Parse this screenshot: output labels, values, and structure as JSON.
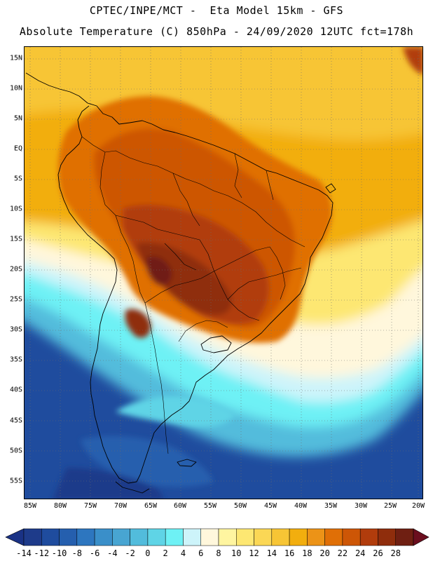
{
  "title_line1": "CPTEC/INPE/MCT -  Eta Model 15km - GFS",
  "title_line2": "Absolute Temperature (C) 850hPa - 24/09/2020 12UTC fct=178h",
  "lat_labels": [
    "15N",
    "10N",
    "5N",
    "EQ",
    "5S",
    "10S",
    "15S",
    "20S",
    "25S",
    "30S",
    "35S",
    "40S",
    "45S",
    "50S",
    "55S"
  ],
  "lon_labels": [
    "85W",
    "80W",
    "75W",
    "70W",
    "65W",
    "60W",
    "55W",
    "50W",
    "45W",
    "40W",
    "35W",
    "30W",
    "25W",
    "20W"
  ],
  "colorbar": {
    "labels": [
      "-14",
      "-12",
      "-10",
      "-8",
      "-6",
      "-4",
      "-2",
      "0",
      "2",
      "4",
      "6",
      "8",
      "10",
      "12",
      "14",
      "16",
      "18",
      "20",
      "22",
      "24",
      "26",
      "28"
    ],
    "colors": [
      "#1e3b8a",
      "#1f4c9e",
      "#255fae",
      "#2d76bf",
      "#3a8fc9",
      "#48a5d2",
      "#52bcdc",
      "#5fd4e6",
      "#6ef1f5",
      "#cdf4fa",
      "#fff7dc",
      "#fff5a0",
      "#fde772",
      "#fbd755",
      "#f7c535",
      "#f2ae0e",
      "#ec9317",
      "#e06f06",
      "#cd5606",
      "#b13c0c",
      "#8f2d0c",
      "#6f1f12"
    ],
    "low_end_color": "#1a3285",
    "high_end_color": "#6b0e1e"
  }
}
